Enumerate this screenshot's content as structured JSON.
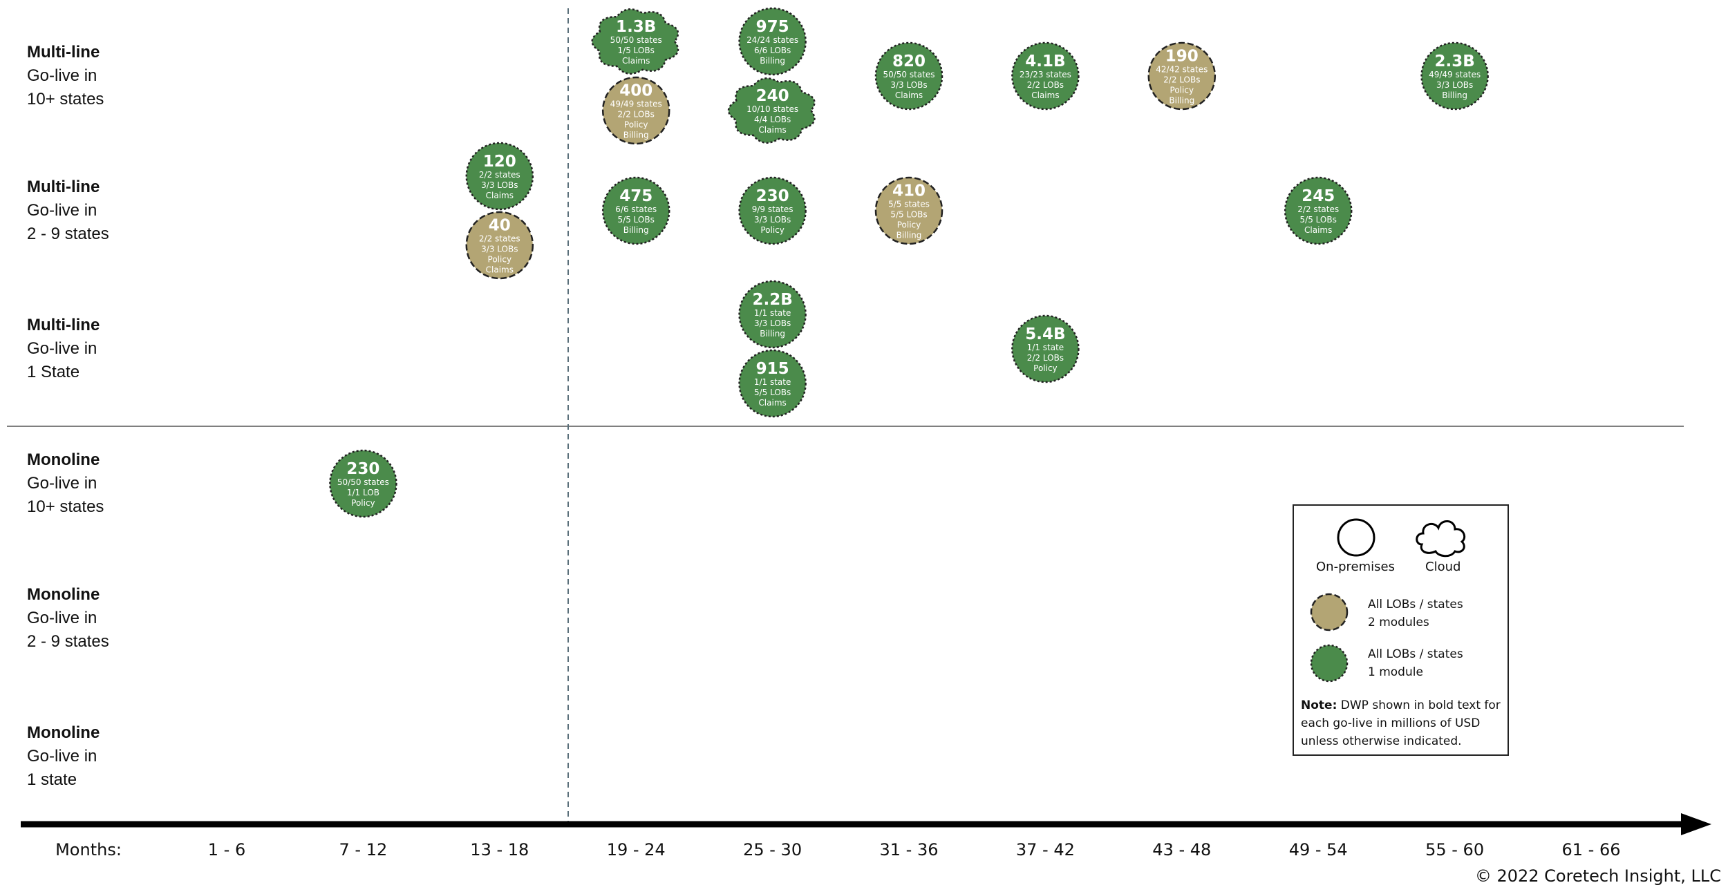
{
  "rows": [
    {
      "title": "Multi-line",
      "line1": "Go-live in",
      "line2": "10+ states"
    },
    {
      "title": "Multi-line",
      "line1": "Go-live in",
      "line2": "2 - 9 states"
    },
    {
      "title": "Multi-line",
      "line1": "Go-live in",
      "line2": "1 State"
    },
    {
      "title": "Monoline",
      "line1": "Go-live in",
      "line2": "10+ states"
    },
    {
      "title": "Monoline",
      "line1": "Go-live in",
      "line2": "2 - 9 states"
    },
    {
      "title": "Monoline",
      "line1": "Go-live in",
      "line2": "1 state"
    }
  ],
  "chart_data": {
    "type": "scatter",
    "x_axis_label": "Months:",
    "categories": [
      "1 - 6",
      "7 - 12",
      "13 - 18",
      "19 - 24",
      "25 - 30",
      "31 - 36",
      "37 - 42",
      "43 - 48",
      "49 - 54",
      "55 - 60",
      "61 - 66"
    ],
    "row_categories": [
      "Multi-line Go-live in 10+ states",
      "Multi-line Go-live in 2 - 9 states",
      "Multi-line Go-live in 1 State",
      "Monoline Go-live in 10+ states",
      "Monoline Go-live in 2 - 9 states",
      "Monoline Go-live in 1 state"
    ],
    "points": [
      {
        "period": "19 - 24",
        "row": 0,
        "dwp": "1.3B",
        "states": "50/50 states",
        "lobs": "1/5 LOBs",
        "modules": [
          "Claims"
        ],
        "deployment": "cloud",
        "type": "1 module"
      },
      {
        "period": "19 - 24",
        "row": 0,
        "dwp": "400",
        "states": "49/49 states",
        "lobs": "2/2 LOBs",
        "modules": [
          "Policy",
          "Billing"
        ],
        "deployment": "on-premises",
        "type": "2 modules"
      },
      {
        "period": "25 - 30",
        "row": 0,
        "dwp": "975",
        "states": "24/24 states",
        "lobs": "6/6 LOBs",
        "modules": [
          "Billing"
        ],
        "deployment": "on-premises",
        "type": "1 module"
      },
      {
        "period": "25 - 30",
        "row": 0,
        "dwp": "240",
        "states": "10/10 states",
        "lobs": "4/4 LOBs",
        "modules": [
          "Claims"
        ],
        "deployment": "cloud",
        "type": "1 module"
      },
      {
        "period": "31 - 36",
        "row": 0,
        "dwp": "820",
        "states": "50/50 states",
        "lobs": "3/3 LOBs",
        "modules": [
          "Claims"
        ],
        "deployment": "on-premises",
        "type": "1 module"
      },
      {
        "period": "37 - 42",
        "row": 0,
        "dwp": "4.1B",
        "states": "23/23 states",
        "lobs": "2/2 LOBs",
        "modules": [
          "Claims"
        ],
        "deployment": "on-premises",
        "type": "1 module"
      },
      {
        "period": "43 - 48",
        "row": 0,
        "dwp": "190",
        "states": "42/42 states",
        "lobs": "2/2 LOBs",
        "modules": [
          "Policy",
          "Billing"
        ],
        "deployment": "on-premises",
        "type": "2 modules"
      },
      {
        "period": "55 - 60",
        "row": 0,
        "dwp": "2.3B",
        "states": "49/49 states",
        "lobs": "3/3 LOBs",
        "modules": [
          "Billing"
        ],
        "deployment": "on-premises",
        "type": "1 module"
      },
      {
        "period": "13 - 18",
        "row": 1,
        "dwp": "120",
        "states": "2/2 states",
        "lobs": "3/3 LOBs",
        "modules": [
          "Claims"
        ],
        "deployment": "on-premises",
        "type": "1 module"
      },
      {
        "period": "13 - 18",
        "row": 1,
        "dwp": "40",
        "states": "2/2 states",
        "lobs": "3/3 LOBs",
        "modules": [
          "Policy",
          "Claims"
        ],
        "deployment": "on-premises",
        "type": "2 modules"
      },
      {
        "period": "19 - 24",
        "row": 1,
        "dwp": "475",
        "states": "6/6 states",
        "lobs": "5/5 LOBs",
        "modules": [
          "Billing"
        ],
        "deployment": "on-premises",
        "type": "1 module"
      },
      {
        "period": "25 - 30",
        "row": 1,
        "dwp": "230",
        "states": "9/9 states",
        "lobs": "3/3 LOBs",
        "modules": [
          "Policy"
        ],
        "deployment": "on-premises",
        "type": "1 module"
      },
      {
        "period": "31 - 36",
        "row": 1,
        "dwp": "410",
        "states": "5/5 states",
        "lobs": "5/5 LOBs",
        "modules": [
          "Policy",
          "Billing"
        ],
        "deployment": "on-premises",
        "type": "2 modules"
      },
      {
        "period": "49 - 54",
        "row": 1,
        "dwp": "245",
        "states": "2/2 states",
        "lobs": "5/5 LOBs",
        "modules": [
          "Claims"
        ],
        "deployment": "on-premises",
        "type": "1 module"
      },
      {
        "period": "25 - 30",
        "row": 2,
        "dwp": "2.2B",
        "states": "1/1 state",
        "lobs": "3/3 LOBs",
        "modules": [
          "Billing"
        ],
        "deployment": "on-premises",
        "type": "1 module"
      },
      {
        "period": "25 - 30",
        "row": 2,
        "dwp": "915",
        "states": "1/1 state",
        "lobs": "5/5 LOBs",
        "modules": [
          "Claims"
        ],
        "deployment": "on-premises",
        "type": "1 module"
      },
      {
        "period": "37 - 42",
        "row": 2,
        "dwp": "5.4B",
        "states": "1/1 state",
        "lobs": "2/2 LOBs",
        "modules": [
          "Policy"
        ],
        "deployment": "on-premises",
        "type": "1 module"
      },
      {
        "period": "7 - 12",
        "row": 3,
        "dwp": "230",
        "states": "50/50 states",
        "lobs": "1/1 LOB",
        "modules": [
          "Policy"
        ],
        "deployment": "on-premises",
        "type": "1 module"
      }
    ],
    "colors": {
      "one_module": "#4b8b4b",
      "two_modules": "#b3a574"
    }
  },
  "legend": {
    "on_premises": "On-premises",
    "cloud": "Cloud",
    "two_modules_line1": "All LOBs / states",
    "two_modules_line2": "2 modules",
    "one_module_line1": "All LOBs / states",
    "one_module_line2": "1 module",
    "note_label": "Note:",
    "note_text": " DWP shown in bold text for each go-live in millions of USD unless otherwise indicated."
  },
  "copyright": "© 2022 Coretech Insight, LLC"
}
